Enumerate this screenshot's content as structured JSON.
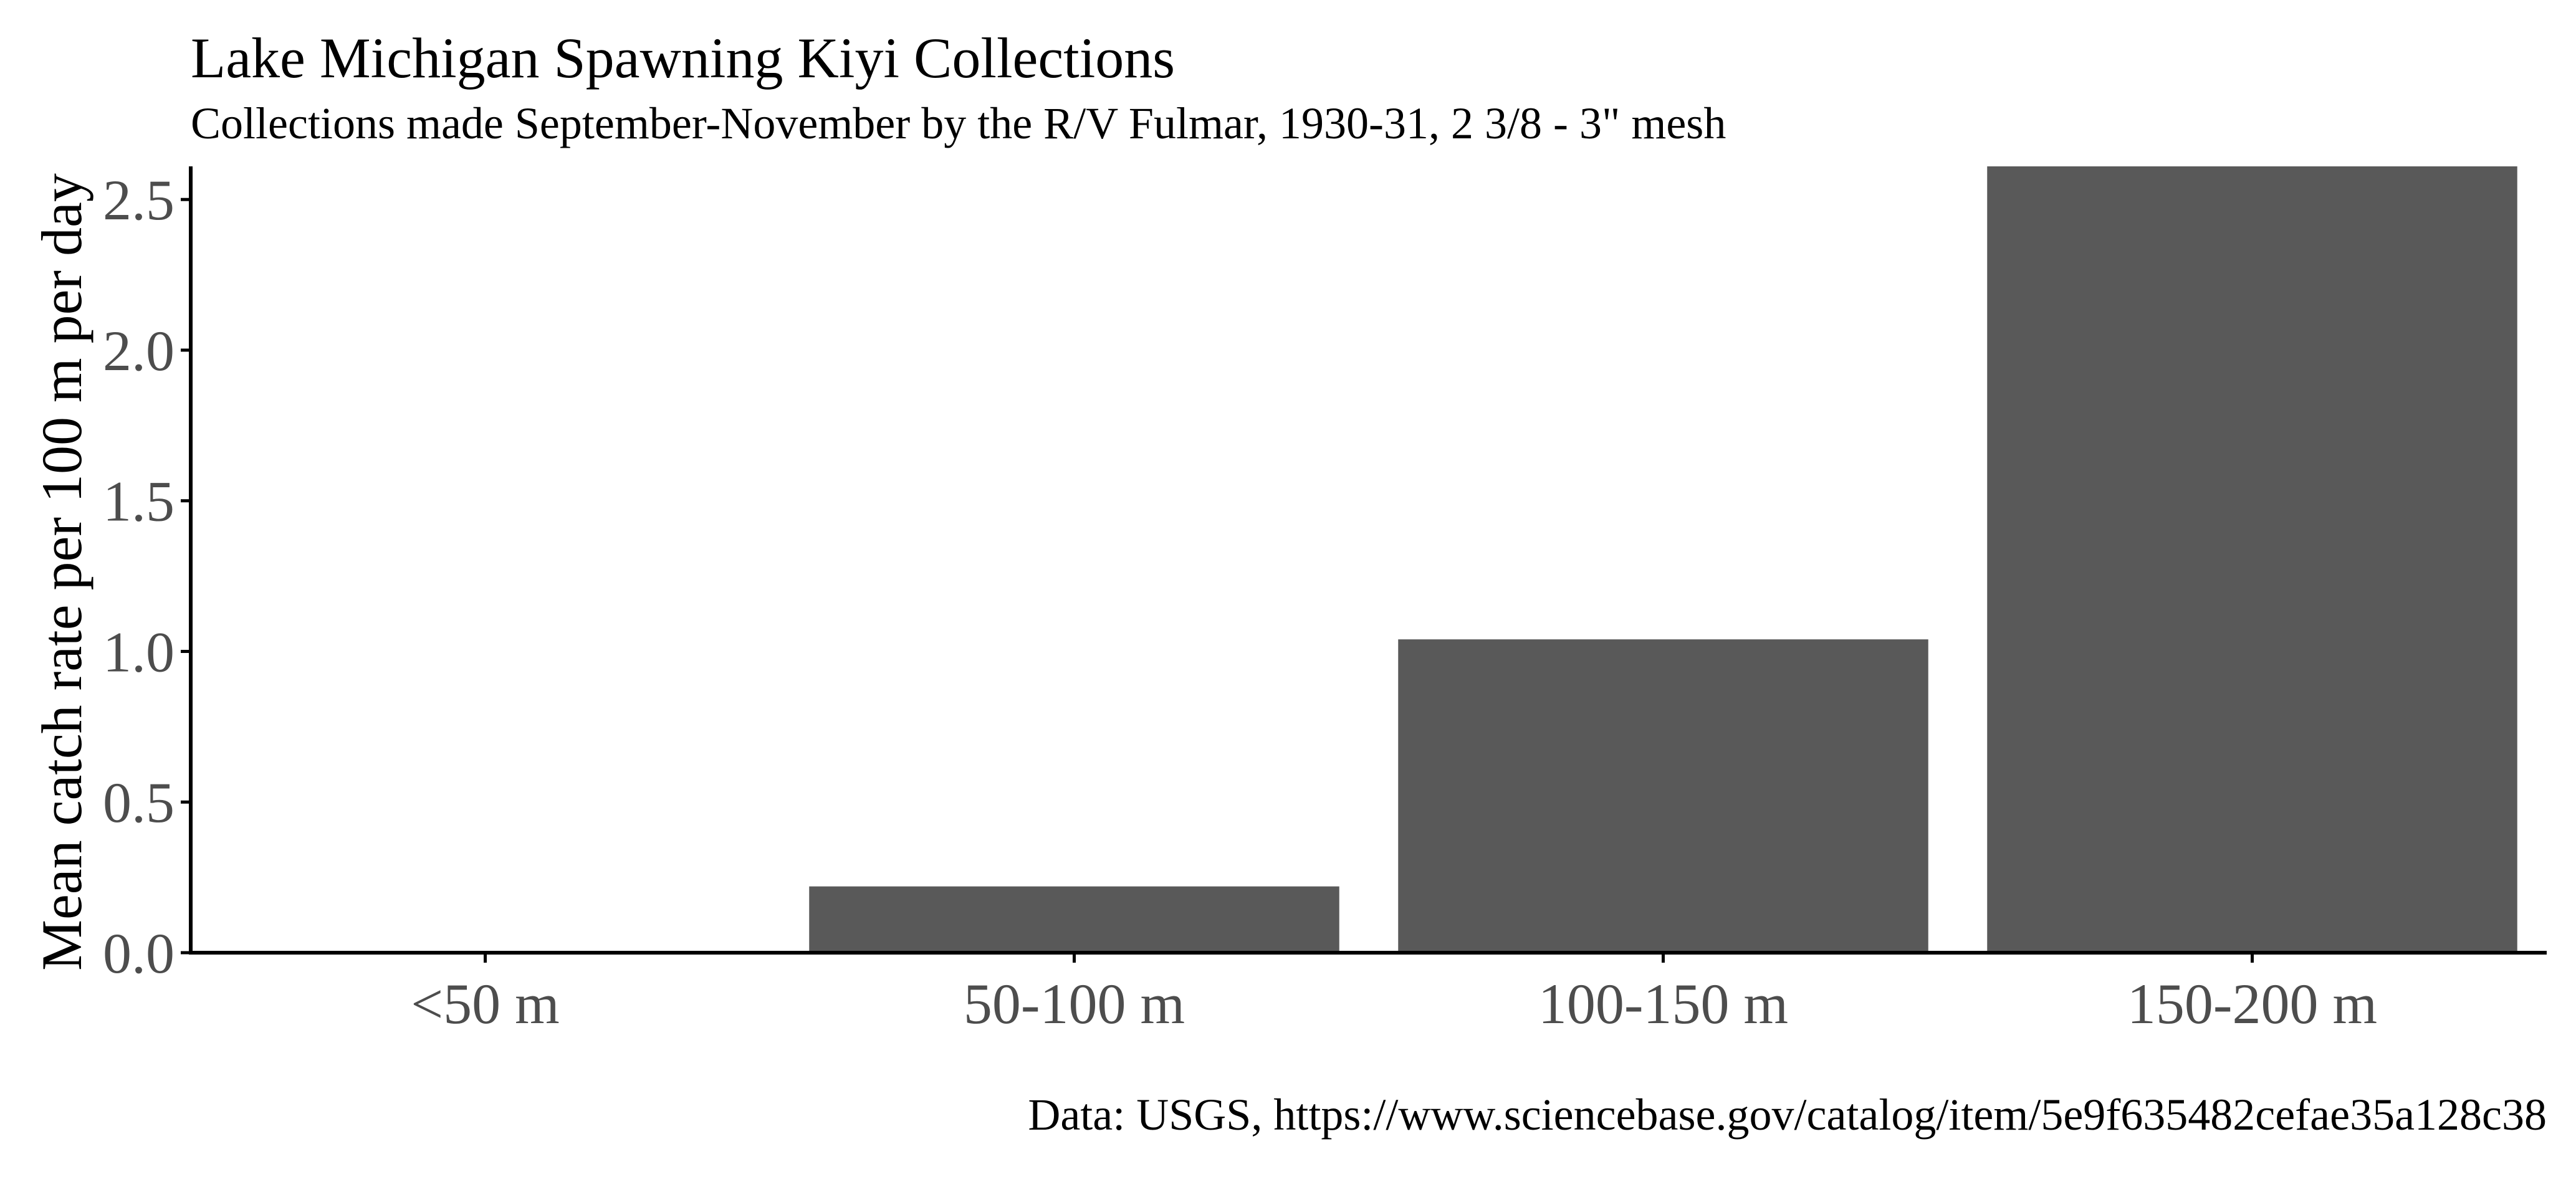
{
  "chart_data": {
    "type": "bar",
    "title": "Lake Michigan Spawning Kiyi Collections",
    "subtitle": "Collections made September-November by the R/V Fulmar, 1930-31,  2 3/8 - 3\" mesh",
    "caption": "Data: USGS, https://www.sciencebase.gov/catalog/item/5e9f635482cefae35a128c38",
    "xlabel": "",
    "ylabel": "Mean catch rate per 100 m per day",
    "categories": [
      "<50 m",
      "50-100 m",
      "100-150 m",
      "150-200 m"
    ],
    "values": [
      0.0,
      0.22,
      1.04,
      2.61
    ],
    "ylim": [
      0,
      2.61
    ],
    "yticks": [
      0.0,
      0.5,
      1.0,
      1.5,
      2.0,
      2.5
    ],
    "ytick_labels": [
      "0.0",
      "0.5",
      "1.0",
      "1.5",
      "2.0",
      "2.5"
    ],
    "bar_color": "#595959",
    "grid": false,
    "legend": "none"
  }
}
